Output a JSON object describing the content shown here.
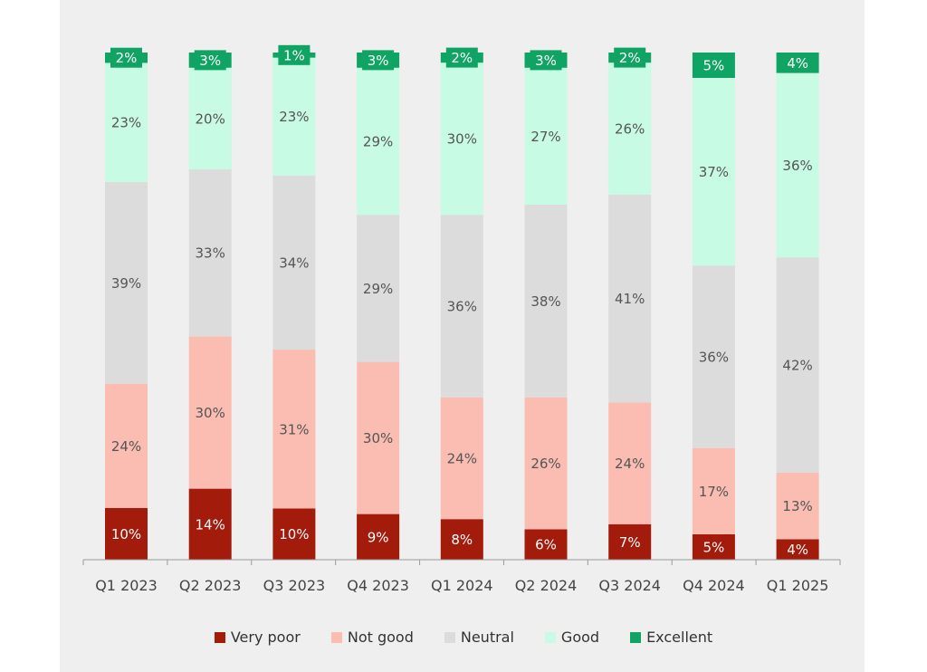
{
  "chart_data": {
    "type": "bar",
    "stacked": true,
    "categories": [
      "Q1 2023",
      "Q2 2023",
      "Q3 2023",
      "Q4 2023",
      "Q1 2024",
      "Q2 2024",
      "Q3 2024",
      "Q4 2024",
      "Q1 2025"
    ],
    "series": [
      {
        "name": "Very poor",
        "color": "#a31b0b",
        "values": [
          10,
          14,
          10,
          9,
          8,
          6,
          7,
          5,
          4
        ]
      },
      {
        "name": "Not good",
        "color": "#fbbcb1",
        "values": [
          24,
          30,
          31,
          30,
          24,
          26,
          24,
          17,
          13
        ]
      },
      {
        "name": "Neutral",
        "color": "#dcdcdc",
        "values": [
          39,
          33,
          34,
          29,
          36,
          38,
          41,
          36,
          42
        ]
      },
      {
        "name": "Good",
        "color": "#c7fbe4",
        "values": [
          23,
          20,
          23,
          29,
          30,
          27,
          26,
          37,
          36
        ]
      },
      {
        "name": "Excellent",
        "color": "#10a464",
        "values": [
          2,
          3,
          1,
          3,
          2,
          3,
          2,
          5,
          4
        ]
      }
    ],
    "value_suffix": "%",
    "legend_position": "bottom",
    "grid": false
  }
}
